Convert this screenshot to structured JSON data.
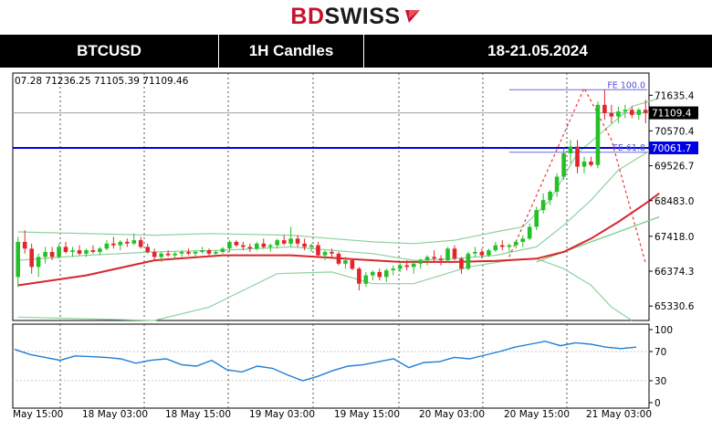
{
  "brand": {
    "part1": "BD",
    "part2": "SWISS"
  },
  "header": {
    "symbol": "BTCUSD",
    "timeframe": "1H Candles",
    "dates": "18-21.05.2024"
  },
  "chart_data": {
    "type": "candlestick",
    "ohlc_readout": "07.28 71236.25 71105.39 71109.46",
    "price_axis": {
      "ticks": [
        71635.4,
        70570.4,
        69526.7,
        68483.0,
        67418.0,
        66374.3,
        65330.6
      ],
      "tick_labels": [
        "71635.4",
        "70570.4",
        "69526.7",
        "68483.0",
        "67418.0",
        "66374.3",
        "65330.6"
      ],
      "ylim": [
        64900,
        72300
      ]
    },
    "current_price": {
      "value": 71109.4,
      "label": "71109.4"
    },
    "horizontal_line": {
      "value": 70061.7,
      "label": "70061.7",
      "color": "#0000e6"
    },
    "fibonacci": [
      {
        "label": "FE 100.0",
        "value": 71800
      },
      {
        "label": "FE 61.8",
        "value": 69930
      }
    ],
    "x_axis": {
      "tick_labels": [
        "May 15:00",
        "18 May 03:00",
        "18 May 15:00",
        "19 May 03:00",
        "19 May 15:00",
        "20 May 03:00",
        "20 May 15:00",
        "21 May 03:00"
      ]
    },
    "candles": [
      [
        66200,
        67400,
        65900,
        67250
      ],
      [
        67250,
        67600,
        66900,
        67050
      ],
      [
        67050,
        67200,
        66300,
        66500
      ],
      [
        66500,
        66900,
        66200,
        66800
      ],
      [
        66800,
        67100,
        66600,
        66950
      ],
      [
        66950,
        67100,
        66700,
        66800
      ],
      [
        66800,
        67200,
        66750,
        67100
      ],
      [
        67100,
        67250,
        66900,
        66950
      ],
      [
        66950,
        67100,
        66800,
        67000
      ],
      [
        67000,
        67150,
        66850,
        66900
      ],
      [
        66900,
        67050,
        66800,
        67000
      ],
      [
        67000,
        67150,
        66900,
        66950
      ],
      [
        66950,
        67100,
        66850,
        67050
      ],
      [
        67050,
        67300,
        67000,
        67200
      ],
      [
        67200,
        67400,
        67050,
        67150
      ],
      [
        67150,
        67300,
        67000,
        67250
      ],
      [
        67250,
        67350,
        67100,
        67200
      ],
      [
        67200,
        67500,
        67150,
        67300
      ],
      [
        67300,
        67400,
        67050,
        67100
      ],
      [
        67100,
        67200,
        66900,
        66950
      ],
      [
        66950,
        67050,
        66700,
        66800
      ],
      [
        66800,
        66950,
        66650,
        66900
      ],
      [
        66900,
        67000,
        66800,
        66850
      ],
      [
        66850,
        66950,
        66750,
        66900
      ],
      [
        66900,
        67000,
        66800,
        66950
      ],
      [
        66950,
        67050,
        66850,
        66900
      ],
      [
        66900,
        67000,
        66800,
        66950
      ],
      [
        66950,
        67100,
        66900,
        67000
      ],
      [
        67000,
        67050,
        66850,
        66900
      ],
      [
        66900,
        67000,
        66800,
        66950
      ],
      [
        66950,
        67100,
        66900,
        67050
      ],
      [
        67050,
        67300,
        66950,
        67250
      ],
      [
        67250,
        67300,
        67100,
        67150
      ],
      [
        67150,
        67250,
        67000,
        67100
      ],
      [
        67100,
        67200,
        66950,
        67050
      ],
      [
        67050,
        67250,
        67000,
        67200
      ],
      [
        67200,
        67350,
        67050,
        67100
      ],
      [
        67100,
        67200,
        66950,
        67150
      ],
      [
        67150,
        67350,
        67050,
        67300
      ],
      [
        67300,
        67450,
        67150,
        67200
      ],
      [
        67200,
        67700,
        67100,
        67350
      ],
      [
        67350,
        67450,
        67100,
        67200
      ],
      [
        67200,
        67350,
        67000,
        67100
      ],
      [
        67100,
        67200,
        66950,
        67150
      ],
      [
        67150,
        67250,
        66800,
        66850
      ],
      [
        66850,
        67000,
        66700,
        66950
      ],
      [
        66950,
        67050,
        66800,
        66900
      ],
      [
        66900,
        66950,
        66550,
        66600
      ],
      [
        66600,
        66800,
        66450,
        66700
      ],
      [
        66700,
        66750,
        66400,
        66450
      ],
      [
        66450,
        66500,
        65800,
        66000
      ],
      [
        66000,
        66350,
        65900,
        66250
      ],
      [
        66250,
        66400,
        66100,
        66350
      ],
      [
        66350,
        66450,
        66100,
        66200
      ],
      [
        66200,
        66450,
        66050,
        66400
      ],
      [
        66400,
        66550,
        66250,
        66450
      ],
      [
        66450,
        66650,
        66350,
        66550
      ],
      [
        66550,
        66700,
        66400,
        66500
      ],
      [
        66500,
        66650,
        66300,
        66600
      ],
      [
        66600,
        66750,
        66450,
        66700
      ],
      [
        66700,
        66850,
        66550,
        66800
      ],
      [
        66800,
        67000,
        66650,
        66750
      ],
      [
        66750,
        66850,
        66550,
        66700
      ],
      [
        66700,
        67100,
        66650,
        67050
      ],
      [
        67050,
        67150,
        66700,
        66750
      ],
      [
        66750,
        66800,
        66300,
        66450
      ],
      [
        66450,
        66950,
        66400,
        66900
      ],
      [
        66900,
        67100,
        66800,
        66950
      ],
      [
        66950,
        67050,
        66750,
        66850
      ],
      [
        66850,
        67050,
        66800,
        67000
      ],
      [
        67000,
        67250,
        66950,
        67150
      ],
      [
        67150,
        67300,
        67000,
        67100
      ],
      [
        67100,
        67200,
        66950,
        67150
      ],
      [
        67150,
        67300,
        67050,
        67250
      ],
      [
        67250,
        67450,
        67100,
        67350
      ],
      [
        67350,
        67800,
        67300,
        67700
      ],
      [
        67700,
        68300,
        67600,
        68200
      ],
      [
        68200,
        68700,
        68100,
        68500
      ],
      [
        68500,
        68800,
        68350,
        68750
      ],
      [
        68750,
        69300,
        68600,
        69200
      ],
      [
        69200,
        70050,
        69100,
        69900
      ],
      [
        69900,
        70300,
        69600,
        70100
      ],
      [
        70100,
        70300,
        69300,
        69500
      ],
      [
        69500,
        69800,
        69300,
        69650
      ],
      [
        69650,
        69800,
        69500,
        69550
      ],
      [
        69550,
        71450,
        69450,
        71350
      ],
      [
        71350,
        71800,
        70900,
        71100
      ],
      [
        71100,
        71350,
        70800,
        71000
      ],
      [
        71000,
        71300,
        70800,
        71150
      ],
      [
        71150,
        71350,
        70950,
        71200
      ],
      [
        71200,
        71300,
        70950,
        71050
      ],
      [
        71050,
        71250,
        70900,
        71200
      ],
      [
        71200,
        71500,
        70800,
        71109
      ]
    ],
    "bollinger": {
      "upper": [
        [
          0,
          67550
        ],
        [
          20,
          67450
        ],
        [
          28,
          67500
        ],
        [
          40,
          67450
        ],
        [
          46,
          67350
        ],
        [
          52,
          67250
        ],
        [
          58,
          67200
        ],
        [
          64,
          67300
        ],
        [
          70,
          67550
        ],
        [
          74,
          67700
        ],
        [
          78,
          68500
        ],
        [
          82,
          69900
        ],
        [
          86,
          70600
        ],
        [
          90,
          71300
        ],
        [
          94,
          71550
        ]
      ],
      "middle": [
        [
          0,
          66700
        ],
        [
          10,
          66850
        ],
        [
          20,
          66950
        ],
        [
          30,
          67000
        ],
        [
          40,
          67100
        ],
        [
          46,
          67000
        ],
        [
          52,
          66900
        ],
        [
          58,
          66700
        ],
        [
          64,
          66750
        ],
        [
          70,
          66850
        ],
        [
          76,
          67100
        ],
        [
          80,
          67750
        ],
        [
          84,
          68500
        ],
        [
          88,
          69400
        ],
        [
          94,
          70150
        ]
      ],
      "lower": [
        [
          0,
          65000
        ],
        [
          20,
          64900
        ],
        [
          28,
          65300
        ],
        [
          38,
          66300
        ],
        [
          46,
          66350
        ],
        [
          52,
          66000
        ],
        [
          58,
          66000
        ],
        [
          66,
          66500
        ],
        [
          72,
          66700
        ],
        [
          76,
          66750
        ],
        [
          80,
          66450
        ],
        [
          84,
          65950
        ],
        [
          87,
          65300
        ],
        [
          90,
          64900
        ]
      ]
    },
    "moving_averages": {
      "red": [
        [
          0,
          65950
        ],
        [
          10,
          66250
        ],
        [
          20,
          66700
        ],
        [
          30,
          66850
        ],
        [
          40,
          66850
        ],
        [
          48,
          66750
        ],
        [
          56,
          66650
        ],
        [
          64,
          66650
        ],
        [
          70,
          66680
        ],
        [
          76,
          66750
        ],
        [
          80,
          66950
        ],
        [
          84,
          67350
        ],
        [
          88,
          67850
        ],
        [
          92,
          68400
        ],
        [
          94,
          68700
        ]
      ],
      "green": [
        [
          76,
          66650
        ],
        [
          80,
          66950
        ],
        [
          84,
          67250
        ],
        [
          88,
          67550
        ],
        [
          92,
          67850
        ],
        [
          94,
          68000
        ]
      ]
    },
    "fibonacci_projection": [
      [
        72,
        66800
      ],
      [
        83,
        71850
      ],
      [
        87,
        70300
      ],
      [
        92,
        66600
      ]
    ],
    "rsi": {
      "ticks": [
        100,
        70,
        30,
        0
      ],
      "tick_labels": [
        "100",
        "70",
        "30",
        "0"
      ],
      "values": [
        [
          0,
          73
        ],
        [
          5,
          66
        ],
        [
          10,
          62
        ],
        [
          15,
          58
        ],
        [
          20,
          64
        ],
        [
          25,
          63
        ],
        [
          30,
          62
        ],
        [
          35,
          60
        ],
        [
          40,
          54
        ],
        [
          45,
          58
        ],
        [
          50,
          60
        ],
        [
          55,
          52
        ],
        [
          60,
          50
        ],
        [
          65,
          58
        ],
        [
          70,
          45
        ],
        [
          75,
          42
        ],
        [
          80,
          50
        ],
        [
          85,
          47
        ],
        [
          90,
          38
        ],
        [
          95,
          30
        ],
        [
          100,
          36
        ],
        [
          105,
          44
        ],
        [
          110,
          50
        ],
        [
          115,
          52
        ],
        [
          120,
          56
        ],
        [
          125,
          60
        ],
        [
          130,
          48
        ],
        [
          135,
          55
        ],
        [
          140,
          56
        ],
        [
          145,
          62
        ],
        [
          150,
          60
        ],
        [
          155,
          65
        ],
        [
          160,
          70
        ],
        [
          165,
          76
        ],
        [
          170,
          80
        ],
        [
          175,
          84
        ],
        [
          180,
          78
        ],
        [
          185,
          82
        ],
        [
          190,
          80
        ],
        [
          195,
          76
        ],
        [
          200,
          74
        ],
        [
          205,
          76
        ]
      ]
    }
  }
}
